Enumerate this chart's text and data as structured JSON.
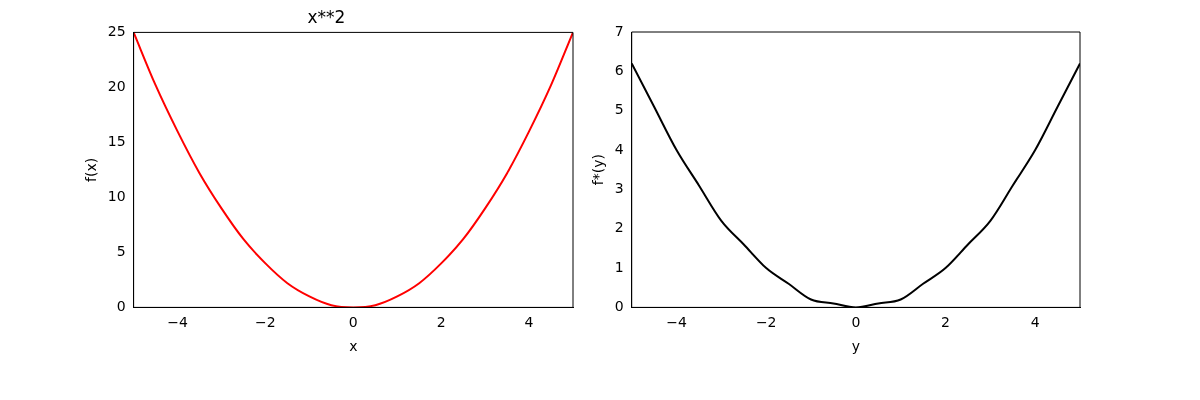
{
  "chart_data": [
    {
      "type": "line",
      "title": "x**2",
      "xlabel": "x",
      "ylabel": "f(x)",
      "x": [
        -5,
        -4.5,
        -4,
        -3.5,
        -3,
        -2.5,
        -2,
        -1.5,
        -1,
        -0.5,
        0,
        0.5,
        1,
        1.5,
        2,
        2.5,
        3,
        3.5,
        4,
        4.5,
        5
      ],
      "series": [
        {
          "color": "#ff0000",
          "values": [
            25,
            20.2,
            16,
            12.2,
            9,
            6.2,
            4,
            2.2,
            1,
            0.2,
            0,
            0.2,
            1,
            2.2,
            4,
            6.2,
            9,
            12.2,
            16,
            20.2,
            25
          ]
        }
      ],
      "xlim": [
        -5,
        5
      ],
      "xticks": [
        -4,
        -2,
        0,
        2,
        4
      ],
      "ylim": [
        0,
        25
      ],
      "yticks": [
        0,
        5,
        10,
        15,
        20,
        25
      ]
    },
    {
      "type": "line",
      "xlabel": "y",
      "ylabel": "f*(y)",
      "x": [
        -5,
        -4.5,
        -4,
        -3.5,
        -3,
        -2.5,
        -2,
        -1.5,
        -1,
        -0.5,
        0,
        0.5,
        1,
        1.5,
        2,
        2.5,
        3,
        3.5,
        4,
        4.5,
        5
      ],
      "series": [
        {
          "color": "#000000",
          "values": [
            6.2,
            5.1,
            4,
            3.1,
            2.2,
            1.6,
            1,
            0.6,
            0.2,
            0.1,
            0,
            0.1,
            0.2,
            0.6,
            1,
            1.6,
            2.2,
            3.1,
            4,
            5.1,
            6.2
          ]
        }
      ],
      "xlim": [
        -5,
        5
      ],
      "xticks": [
        -4,
        -2,
        0,
        2,
        4
      ],
      "ylim": [
        0,
        7
      ],
      "yticks": [
        0,
        1,
        2,
        3,
        4,
        5,
        6,
        7
      ]
    }
  ]
}
